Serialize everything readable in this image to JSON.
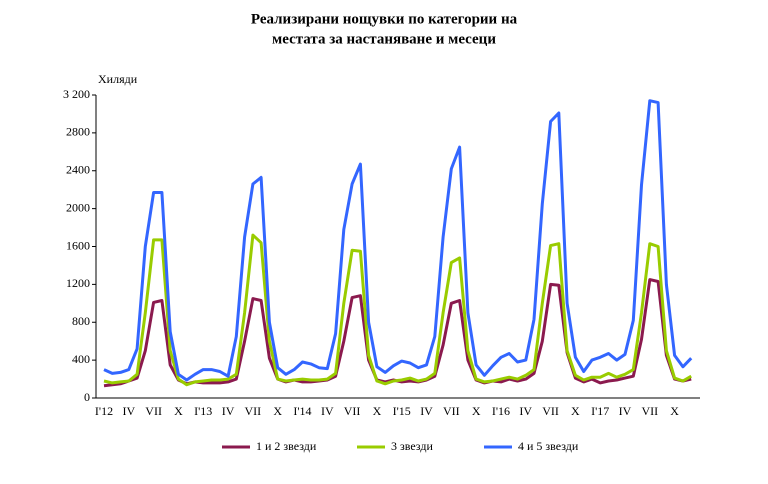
{
  "chart_data": {
    "type": "line",
    "title": [
      "Реализирани нощувки по категории на",
      "местата за настаняване и месеци"
    ],
    "y_label": "Хиляди",
    "categories": [
      "I'12",
      null,
      null,
      "IV",
      null,
      null,
      "VII",
      null,
      null,
      "X",
      null,
      null,
      "I'13",
      null,
      null,
      "IV",
      null,
      null,
      "VII",
      null,
      null,
      "X",
      null,
      null,
      "I'14",
      null,
      null,
      "IV",
      null,
      null,
      "VII",
      null,
      null,
      "X",
      null,
      null,
      "I'15",
      null,
      null,
      "IV",
      null,
      null,
      "VII",
      null,
      null,
      "X",
      null,
      null,
      "I'16",
      null,
      null,
      "IV",
      null,
      null,
      "VII",
      null,
      null,
      "X",
      null,
      null,
      "I'17",
      null,
      null,
      "IV",
      null,
      null,
      "VII",
      null,
      null,
      "X",
      null,
      null
    ],
    "series": [
      {
        "name": "1 и 2 звезди",
        "color": "#8b1a4e",
        "values": [
          130,
          140,
          150,
          180,
          210,
          500,
          1010,
          1030,
          350,
          190,
          150,
          170,
          160,
          160,
          160,
          170,
          200,
          600,
          1050,
          1030,
          420,
          200,
          170,
          190,
          170,
          170,
          180,
          190,
          230,
          600,
          1060,
          1080,
          400,
          190,
          170,
          190,
          170,
          180,
          170,
          190,
          230,
          560,
          1000,
          1030,
          400,
          190,
          160,
          180,
          170,
          200,
          180,
          200,
          260,
          600,
          1200,
          1190,
          480,
          210,
          170,
          200,
          160,
          180,
          190,
          210,
          230,
          620,
          1250,
          1230,
          450,
          200,
          180,
          200
        ]
      },
      {
        "name": "3 звезди",
        "color": "#99cc00",
        "values": [
          180,
          160,
          170,
          180,
          250,
          900,
          1670,
          1670,
          500,
          200,
          140,
          170,
          180,
          190,
          190,
          200,
          250,
          900,
          1720,
          1640,
          600,
          200,
          180,
          190,
          200,
          190,
          190,
          200,
          260,
          1000,
          1560,
          1550,
          450,
          180,
          150,
          180,
          190,
          210,
          180,
          200,
          260,
          900,
          1430,
          1480,
          500,
          200,
          170,
          180,
          200,
          220,
          200,
          240,
          300,
          1000,
          1610,
          1630,
          500,
          240,
          190,
          220,
          220,
          260,
          220,
          250,
          300,
          900,
          1630,
          1600,
          500,
          210,
          180,
          230
        ]
      },
      {
        "name": "4 и 5 звезди",
        "color": "#3366ff",
        "values": [
          300,
          260,
          270,
          300,
          520,
          1600,
          2170,
          2170,
          700,
          250,
          190,
          250,
          300,
          300,
          280,
          230,
          650,
          1700,
          2260,
          2330,
          800,
          320,
          250,
          300,
          380,
          360,
          320,
          310,
          680,
          1780,
          2260,
          2470,
          800,
          330,
          270,
          340,
          390,
          370,
          320,
          350,
          650,
          1700,
          2420,
          2650,
          900,
          350,
          240,
          340,
          430,
          470,
          380,
          400,
          830,
          2050,
          2920,
          3010,
          1000,
          430,
          280,
          400,
          430,
          470,
          400,
          460,
          820,
          2250,
          3140,
          3120,
          1200,
          450,
          330,
          420
        ]
      }
    ],
    "ylim": [
      0,
      3200
    ],
    "yticks": [
      0,
      400,
      800,
      1200,
      1600,
      2000,
      2400,
      2800,
      {
        "value": 3200,
        "label": "3 200"
      }
    ],
    "grid": false
  }
}
